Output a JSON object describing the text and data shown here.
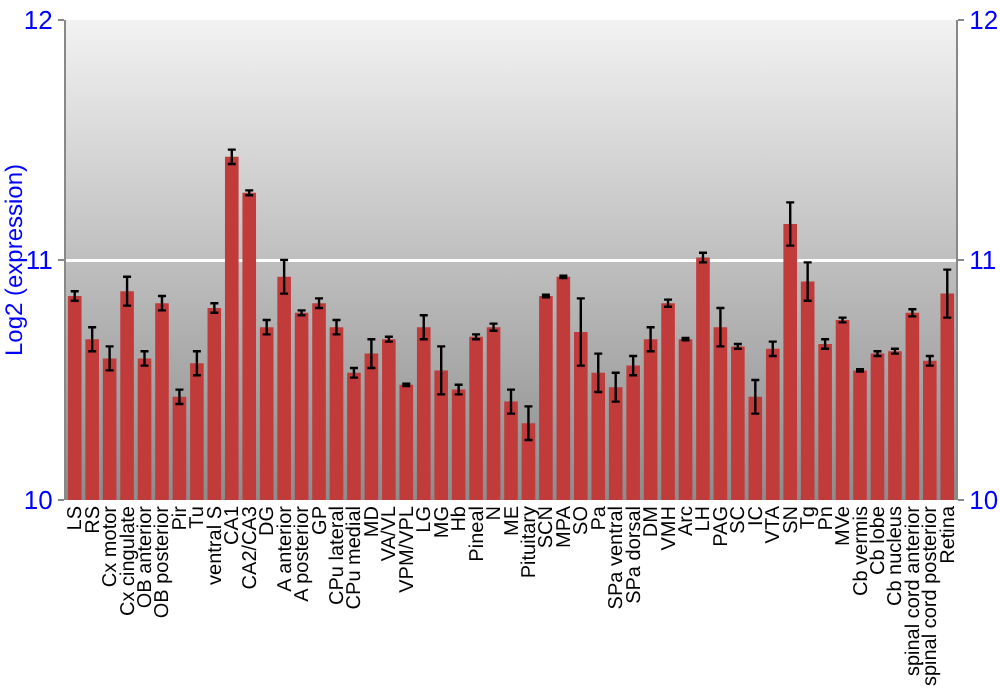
{
  "chart_data": {
    "type": "bar",
    "ylabel": "Log2 (expression)",
    "categories": [
      "LS",
      "RS",
      "Cx motor",
      "Cx cingulate",
      "OB anterior",
      "OB posterior",
      "Pir",
      "Tu",
      "ventral S",
      "CA1",
      "CA2/CA3",
      "DG",
      "A anterior",
      "A posterior",
      "GP",
      "CPu lateral",
      "CPu medial",
      "MD",
      "VA/VL",
      "VPM/VPL",
      "LG",
      "MG",
      "Hb",
      "Pineal",
      "N",
      "ME",
      "Pituitary",
      "SCN",
      "MPA",
      "SO",
      "Pa",
      "SPa ventral",
      "SPa dorsal",
      "DM",
      "VMH",
      "Arc",
      "LH",
      "PAG",
      "SC",
      "IC",
      "VTA",
      "SN",
      "Tg",
      "Pn",
      "MVe",
      "Cb vermis",
      "Cb lobe",
      "Cb nucleus",
      "spinal cord anterior",
      "spinal cord posterior",
      "Retina"
    ],
    "values": [
      10.85,
      10.67,
      10.59,
      10.87,
      10.59,
      10.82,
      10.43,
      10.57,
      10.8,
      11.43,
      11.28,
      10.72,
      10.93,
      10.78,
      10.82,
      10.72,
      10.53,
      10.61,
      10.67,
      10.48,
      10.72,
      10.54,
      10.46,
      10.68,
      10.72,
      10.41,
      10.32,
      10.85,
      10.93,
      10.7,
      10.53,
      10.47,
      10.56,
      10.67,
      10.82,
      10.67,
      11.01,
      10.72,
      10.64,
      10.43,
      10.63,
      11.15,
      10.91,
      10.65,
      10.75,
      10.54,
      10.61,
      10.62,
      10.78,
      10.58,
      10.86
    ],
    "errors": [
      0.02,
      0.05,
      0.05,
      0.06,
      0.03,
      0.03,
      0.03,
      0.05,
      0.02,
      0.03,
      0.01,
      0.03,
      0.07,
      0.01,
      0.02,
      0.03,
      0.02,
      0.06,
      0.01,
      0.005,
      0.05,
      0.1,
      0.02,
      0.01,
      0.015,
      0.05,
      0.07,
      0.005,
      0.005,
      0.14,
      0.08,
      0.06,
      0.04,
      0.05,
      0.015,
      0.005,
      0.02,
      0.08,
      0.01,
      0.07,
      0.03,
      0.09,
      0.08,
      0.02,
      0.01,
      0.005,
      0.01,
      0.01,
      0.015,
      0.02,
      0.1
    ],
    "color": "#c23b3b",
    "ylim": [
      10,
      12
    ],
    "yticks": [
      10,
      11,
      12
    ],
    "y2lim": [
      10,
      12
    ],
    "y2ticks": [
      10,
      11,
      12
    ],
    "grid": "y"
  }
}
